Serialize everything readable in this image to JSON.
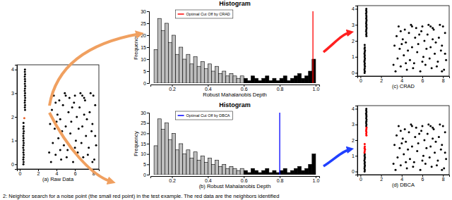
{
  "chart_data": [
    {
      "type": "scatter",
      "xlabel": "(a) Raw Data",
      "xlim": [
        -0.3,
        8.6
      ],
      "ylim": [
        -0.2,
        4.2
      ],
      "xticks": [
        0,
        2,
        4,
        6,
        8
      ],
      "yticks": [
        0,
        1,
        2,
        3,
        4
      ],
      "marker": "circle",
      "series": [
        {
          "color": "#000000",
          "x": [
            3.4,
            3.9,
            4.5,
            5.2,
            5.8,
            6.3,
            6.9,
            7.5,
            8.1,
            3.6,
            4.2,
            4.8,
            5.5,
            6.1,
            6.7,
            7.2,
            7.8,
            8.3,
            3.3,
            3.8,
            4.4,
            5.0,
            5.6,
            6.2,
            6.8,
            7.3,
            7.9,
            3.5,
            4.1,
            4.7,
            5.3,
            5.9,
            6.5,
            7.0,
            7.6,
            8.2,
            3.7,
            4.3,
            4.9,
            5.4,
            6.0,
            6.6,
            7.1,
            7.7,
            8.0,
            3.2,
            4.0,
            4.6,
            5.1,
            5.7,
            6.4,
            7.4,
            8.2,
            3.9,
            5.0,
            6.0,
            7.0,
            4.4,
            6.8,
            7.9,
            0.4,
            0.42,
            0.39,
            0.41,
            0.43,
            0.4,
            0.42,
            0.38,
            0.41,
            0.43,
            0.4,
            0.42,
            0.39,
            0.41,
            0.44,
            0.4,
            0.42,
            0.41,
            0.56,
            0.58,
            0.55,
            0.57,
            0.59,
            0.56,
            0.58,
            0.55,
            0.57,
            0.59,
            0.56,
            0.58,
            0.57,
            0.55,
            0.58,
            0.56,
            0.57,
            0.58
          ],
          "y": [
            0.1,
            0.4,
            0.2,
            0.6,
            0.1,
            0.5,
            0.3,
            0.7,
            0.2,
            0.9,
            1.1,
            0.8,
            1.3,
            1.0,
            0.9,
            1.2,
            1.4,
            0.8,
            1.7,
            1.5,
            1.9,
            1.6,
            1.8,
            2.0,
            1.6,
            1.9,
            1.7,
            2.3,
            2.1,
            2.5,
            2.2,
            2.6,
            2.4,
            2.8,
            2.2,
            2.5,
            2.9,
            2.7,
            3.0,
            2.8,
            2.9,
            3.0,
            2.7,
            3.0,
            2.9,
            0.5,
            1.8,
            1.4,
            0.3,
            2.4,
            1.5,
            0.4,
            1.2,
            2.6,
            2.9,
            0.7,
            2.1,
            0.6,
            2.9,
            0.1,
            0.0,
            0.1,
            0.2,
            0.3,
            0.4,
            0.5,
            0.6,
            0.7,
            0.8,
            0.9,
            1.0,
            1.1,
            1.2,
            1.3,
            1.4,
            1.5,
            1.6,
            1.75,
            2.4,
            2.5,
            2.6,
            2.7,
            2.8,
            2.9,
            3.0,
            3.1,
            3.2,
            3.3,
            3.4,
            3.5,
            3.6,
            3.7,
            3.8,
            3.9,
            4.0,
            2.3
          ]
        },
        {
          "color": "#e8632a",
          "x": [
            0.5
          ],
          "y": [
            1.95
          ]
        }
      ]
    },
    {
      "type": "histogram",
      "title": "Histogram",
      "xlabel": "Robust Mahalanobis Depth",
      "ylabel": "Frequency",
      "xlim": [
        0.08,
        1.02
      ],
      "ylim": [
        0,
        30
      ],
      "xticks": [
        0.2,
        0.4,
        0.6,
        0.8,
        {
          "value": 1,
          "label": "1.0"
        }
      ],
      "yticks": [
        0,
        5,
        10,
        15,
        20,
        25,
        30
      ],
      "bins": [
        0.1,
        0.12,
        0.14,
        0.16,
        0.18,
        0.2,
        0.22,
        0.24,
        0.26,
        0.28,
        0.3,
        0.32,
        0.34,
        0.36,
        0.38,
        0.4,
        0.42,
        0.44,
        0.46,
        0.48,
        0.5,
        0.52,
        0.54,
        0.56,
        0.58,
        0.6,
        0.62,
        0.64,
        0.66,
        0.68,
        0.7,
        0.72,
        0.74,
        0.76,
        0.78,
        0.8,
        0.82,
        0.84,
        0.86,
        0.88,
        0.9,
        0.92,
        0.94,
        0.96,
        0.98,
        1.0
      ],
      "counts": [
        14,
        27,
        22,
        25,
        17,
        20,
        12,
        15,
        10,
        12,
        8,
        11,
        7,
        9,
        6,
        8,
        5,
        7,
        4,
        5,
        3,
        4,
        3,
        2,
        3,
        2,
        1,
        3,
        2,
        1,
        2,
        3,
        1,
        2,
        1,
        2,
        3,
        1,
        2,
        3,
        4,
        2,
        3,
        5,
        10
      ],
      "colors": [
        "#bebebe",
        "#bebebe",
        "#bebebe",
        "#bebebe",
        "#bebebe",
        "#bebebe",
        "#bebebe",
        "#bebebe",
        "#bebebe",
        "#bebebe",
        "#bebebe",
        "#bebebe",
        "#bebebe",
        "#bebebe",
        "#bebebe",
        "#bebebe",
        "#bebebe",
        "#bebebe",
        "#bebebe",
        "#bebebe",
        "#bebebe",
        "#bebebe",
        "#bebebe",
        "#bebebe",
        "#bebebe",
        "#000000",
        "#000000",
        "#000000",
        "#000000",
        "#000000",
        "#000000",
        "#000000",
        "#000000",
        "#000000",
        "#000000",
        "#000000",
        "#000000",
        "#000000",
        "#000000",
        "#000000",
        "#000000",
        "#000000",
        "#000000",
        "#000000",
        "#000000"
      ],
      "legend": "top-left",
      "series": [
        {
          "name": "Optimal Cut Off by CRAD",
          "type": "vline",
          "color": "#ff0000",
          "values": [
            0.985
          ]
        }
      ]
    },
    {
      "type": "scatter",
      "xlabel": "(c) CRAD",
      "xlim": [
        -0.3,
        8.6
      ],
      "ylim": [
        -0.2,
        4.2
      ],
      "xticks": [
        0,
        2,
        4,
        6,
        8
      ],
      "yticks": [
        0,
        1,
        2,
        3,
        4
      ],
      "marker": "circle",
      "series": [
        {
          "color": "#000000",
          "x": [
            3.4,
            3.9,
            4.5,
            5.2,
            5.8,
            6.3,
            6.9,
            7.5,
            8.1,
            3.6,
            4.2,
            4.8,
            5.5,
            6.1,
            6.7,
            7.2,
            7.8,
            8.3,
            3.3,
            3.8,
            4.4,
            5.0,
            5.6,
            6.2,
            6.8,
            7.3,
            7.9,
            3.5,
            4.1,
            4.7,
            5.3,
            5.9,
            6.5,
            7.0,
            7.6,
            8.2,
            3.7,
            4.3,
            4.9,
            5.4,
            6.0,
            6.6,
            7.1,
            7.7,
            8.0,
            3.2,
            4.0,
            4.6,
            5.1,
            5.7,
            6.4,
            7.4,
            8.2,
            3.9,
            5.0,
            6.0,
            7.0,
            4.4,
            6.8,
            7.9,
            0.4,
            0.42,
            0.39,
            0.41,
            0.43,
            0.4,
            0.42,
            0.38,
            0.41,
            0.43,
            0.4,
            0.42,
            0.39,
            0.41,
            0.44,
            0.4,
            0.42,
            0.41,
            0.56,
            0.58,
            0.55,
            0.57,
            0.59,
            0.56,
            0.58,
            0.55,
            0.57,
            0.59,
            0.56,
            0.58,
            0.57,
            0.55,
            0.58,
            0.56,
            0.57,
            0.58
          ],
          "y": [
            0.1,
            0.4,
            0.2,
            0.6,
            0.1,
            0.5,
            0.3,
            0.7,
            0.2,
            0.9,
            1.1,
            0.8,
            1.3,
            1.0,
            0.9,
            1.2,
            1.4,
            0.8,
            1.7,
            1.5,
            1.9,
            1.6,
            1.8,
            2.0,
            1.6,
            1.9,
            1.7,
            2.3,
            2.1,
            2.5,
            2.2,
            2.6,
            2.4,
            2.8,
            2.2,
            2.5,
            2.9,
            2.7,
            3.0,
            2.8,
            2.9,
            3.0,
            2.7,
            3.0,
            2.9,
            0.5,
            1.8,
            1.4,
            0.3,
            2.4,
            1.5,
            0.4,
            1.2,
            2.6,
            2.9,
            0.7,
            2.1,
            0.6,
            2.9,
            0.1,
            0.0,
            0.1,
            0.2,
            0.3,
            0.4,
            0.5,
            0.6,
            0.7,
            0.8,
            0.9,
            1.0,
            1.1,
            1.2,
            1.3,
            1.4,
            1.5,
            1.6,
            1.75,
            2.4,
            2.5,
            2.6,
            2.7,
            2.8,
            2.9,
            3.0,
            3.1,
            3.2,
            3.3,
            3.4,
            3.5,
            3.6,
            3.7,
            3.8,
            3.9,
            4.0,
            2.3
          ]
        }
      ]
    },
    {
      "type": "histogram",
      "title": "Histogram",
      "xlabel": "(b) Robust Mahalanobis Depth",
      "ylabel": "Frequency",
      "xlim": [
        0.08,
        1.02
      ],
      "ylim": [
        0,
        30
      ],
      "xticks": [
        0.2,
        0.4,
        0.6,
        0.8,
        {
          "value": 1,
          "label": "1.0"
        }
      ],
      "yticks": [
        0,
        5,
        10,
        15,
        20,
        25,
        30
      ],
      "bins": [
        0.1,
        0.12,
        0.14,
        0.16,
        0.18,
        0.2,
        0.22,
        0.24,
        0.26,
        0.28,
        0.3,
        0.32,
        0.34,
        0.36,
        0.38,
        0.4,
        0.42,
        0.44,
        0.46,
        0.48,
        0.5,
        0.52,
        0.54,
        0.56,
        0.58,
        0.6,
        0.62,
        0.64,
        0.66,
        0.68,
        0.7,
        0.72,
        0.74,
        0.76,
        0.78,
        0.8,
        0.82,
        0.84,
        0.86,
        0.88,
        0.9,
        0.92,
        0.94,
        0.96,
        0.98,
        1.0
      ],
      "counts": [
        14,
        27,
        22,
        25,
        17,
        20,
        12,
        15,
        10,
        12,
        8,
        11,
        7,
        9,
        6,
        8,
        5,
        7,
        4,
        5,
        3,
        4,
        3,
        2,
        3,
        2,
        1,
        3,
        2,
        1,
        2,
        3,
        1,
        2,
        1,
        2,
        3,
        1,
        2,
        3,
        4,
        2,
        3,
        5,
        10
      ],
      "colors": [
        "#bebebe",
        "#bebebe",
        "#bebebe",
        "#bebebe",
        "#bebebe",
        "#bebebe",
        "#bebebe",
        "#bebebe",
        "#bebebe",
        "#bebebe",
        "#bebebe",
        "#bebebe",
        "#bebebe",
        "#bebebe",
        "#bebebe",
        "#bebebe",
        "#bebebe",
        "#bebebe",
        "#bebebe",
        "#bebebe",
        "#bebebe",
        "#bebebe",
        "#bebebe",
        "#bebebe",
        "#bebebe",
        "#000000",
        "#000000",
        "#000000",
        "#000000",
        "#000000",
        "#000000",
        "#000000",
        "#000000",
        "#000000",
        "#000000",
        "#000000",
        "#000000",
        "#000000",
        "#000000",
        "#000000",
        "#000000",
        "#000000",
        "#000000",
        "#000000",
        "#000000"
      ],
      "legend": "top-left",
      "series": [
        {
          "name": "Optimal Cut Off by DBCA",
          "type": "vline",
          "color": "#0000ff",
          "values": [
            0.8
          ]
        }
      ]
    },
    {
      "type": "scatter",
      "xlabel": "(d) DBCA",
      "xlim": [
        -0.3,
        8.6
      ],
      "ylim": [
        -0.2,
        4.2
      ],
      "xticks": [
        0,
        2,
        4,
        6,
        8
      ],
      "yticks": [
        0,
        1,
        2,
        3,
        4
      ],
      "marker": "circle",
      "series": [
        {
          "color": "#000000",
          "x": [
            3.4,
            3.9,
            4.5,
            5.2,
            5.8,
            6.3,
            6.9,
            7.5,
            8.1,
            3.6,
            4.2,
            4.8,
            5.5,
            6.1,
            6.7,
            7.2,
            7.8,
            8.3,
            3.3,
            3.8,
            4.4,
            5.0,
            5.6,
            6.2,
            6.8,
            7.3,
            7.9,
            3.5,
            4.1,
            4.7,
            5.3,
            5.9,
            6.5,
            7.0,
            7.6,
            8.2,
            3.7,
            4.3,
            4.9,
            5.4,
            6.0,
            6.6,
            7.1,
            7.7,
            8.0,
            3.2,
            4.0,
            4.6,
            5.1,
            5.7,
            6.4,
            7.4,
            8.2,
            3.9,
            5.0,
            6.0,
            7.0,
            4.4,
            6.8,
            7.9,
            0.4,
            0.42,
            0.39,
            0.41,
            0.43,
            0.4,
            0.42,
            0.38,
            0.41,
            0.43,
            0.4,
            0.42,
            0.56,
            0.58,
            0.55,
            0.57,
            0.59,
            0.56,
            0.58,
            0.57,
            0.55,
            0.58,
            0.56,
            0.57
          ],
          "y": [
            0.1,
            0.4,
            0.2,
            0.6,
            0.1,
            0.5,
            0.3,
            0.7,
            0.2,
            0.9,
            1.1,
            0.8,
            1.3,
            1.0,
            0.9,
            1.2,
            1.4,
            0.8,
            1.7,
            1.5,
            1.9,
            1.6,
            1.8,
            2.0,
            1.6,
            1.9,
            1.7,
            2.3,
            2.1,
            2.5,
            2.2,
            2.6,
            2.4,
            2.8,
            2.2,
            2.5,
            2.9,
            2.7,
            3.0,
            2.8,
            2.9,
            3.0,
            2.7,
            3.0,
            2.9,
            0.5,
            1.8,
            1.4,
            0.3,
            2.4,
            1.5,
            0.4,
            1.2,
            2.6,
            2.9,
            0.7,
            2.1,
            0.6,
            2.9,
            0.1,
            0.0,
            0.1,
            0.2,
            0.3,
            0.4,
            0.5,
            0.6,
            0.7,
            0.8,
            0.9,
            1.0,
            1.1,
            2.9,
            3.0,
            3.1,
            3.2,
            3.3,
            3.4,
            3.5,
            3.6,
            3.7,
            3.8,
            3.9,
            4.0
          ]
        },
        {
          "color": "#ff0000",
          "x": [
            0.39,
            0.41,
            0.44,
            0.4,
            0.42,
            0.41,
            0.56,
            0.58,
            0.55,
            0.57,
            0.59,
            0.58
          ],
          "y": [
            1.2,
            1.3,
            1.4,
            1.5,
            1.6,
            1.75,
            2.4,
            2.5,
            2.6,
            2.7,
            2.8,
            2.3
          ]
        }
      ]
    }
  ],
  "caption": "2: Neighbor search for a noise point (the small red point) in the test example. The red data are the neighbors identified"
}
